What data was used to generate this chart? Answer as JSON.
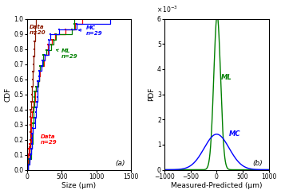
{
  "left": {
    "xlabel": "Size (μm)",
    "ylabel": "CDF",
    "xlim": [
      0,
      1500
    ],
    "ylim": [
      0,
      1.0
    ],
    "xticks": [
      0,
      500,
      1000,
      1500
    ],
    "yticks": [
      0,
      0.1,
      0.2,
      0.3,
      0.4,
      0.5,
      0.6,
      0.7,
      0.8,
      0.9,
      1.0
    ],
    "label_a": "(a)"
  },
  "right": {
    "xlabel": "Measured-Predicted (μm)",
    "ylabel": "PDF",
    "xlim": [
      -1000,
      1000
    ],
    "ylim": [
      0,
      0.006
    ],
    "xticks": [
      -1000,
      -500,
      0,
      500,
      1000
    ],
    "yticks": [
      0,
      0.001,
      0.002,
      0.003,
      0.004,
      0.005,
      0.006
    ],
    "label_b": "(b)"
  },
  "colors": {
    "data20": "#8B1A00",
    "data29": "#FF0000",
    "ml": "#008000",
    "mc": "#0000FF"
  },
  "bg_color": "#ffffff"
}
